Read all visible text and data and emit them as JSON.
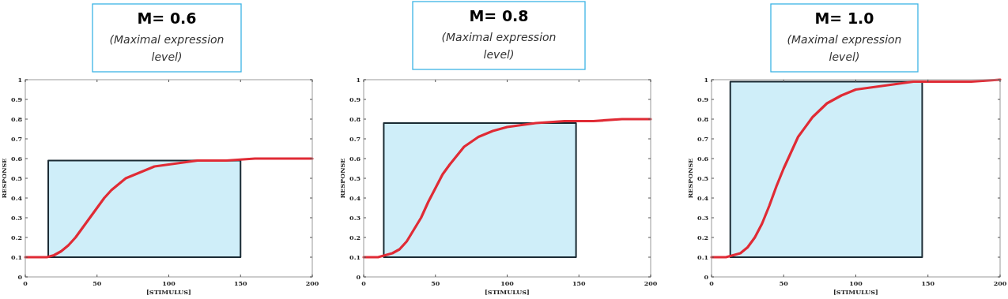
{
  "chart_data": [
    {
      "type": "line",
      "title": "M= 0.6",
      "subtitle": "(Maximal expression level)",
      "xlabel": "[STIMULUS]",
      "ylabel": "RESPONSE",
      "xlim": [
        0,
        200
      ],
      "ylim": [
        0,
        1
      ],
      "xticks": [
        0,
        50,
        100,
        150,
        200
      ],
      "yticks": [
        0,
        0.1,
        0.2,
        0.3,
        0.4,
        0.5,
        0.6,
        0.7,
        0.8,
        0.9,
        1
      ],
      "series": [
        {
          "type": "area",
          "color": "#cfeef9",
          "x": [
            16,
            16,
            150,
            150
          ],
          "values": [
            0.1,
            0.59,
            0.59,
            0.1
          ]
        },
        {
          "color": "#e02b35",
          "x": [
            0,
            10,
            15,
            20,
            25,
            30,
            35,
            40,
            45,
            50,
            55,
            60,
            70,
            80,
            90,
            100,
            110,
            120,
            140,
            160,
            180,
            200
          ],
          "values": [
            0.1,
            0.1,
            0.1,
            0.11,
            0.13,
            0.16,
            0.2,
            0.25,
            0.3,
            0.35,
            0.4,
            0.44,
            0.5,
            0.53,
            0.56,
            0.57,
            0.58,
            0.59,
            0.59,
            0.6,
            0.6,
            0.6
          ]
        }
      ]
    },
    {
      "type": "line",
      "title": "M= 0.8",
      "subtitle": "(Maximal expression level)",
      "xlabel": "[STIMULUS]",
      "ylabel": "RESPONSE",
      "xlim": [
        0,
        200
      ],
      "ylim": [
        0,
        1
      ],
      "xticks": [
        0,
        50,
        100,
        150,
        200
      ],
      "yticks": [
        0,
        0.1,
        0.2,
        0.3,
        0.4,
        0.5,
        0.6,
        0.7,
        0.8,
        0.9,
        1
      ],
      "series": [
        {
          "type": "area",
          "color": "#cfeef9",
          "x": [
            14,
            14,
            148,
            148
          ],
          "values": [
            0.1,
            0.78,
            0.78,
            0.1
          ]
        },
        {
          "color": "#e02b35",
          "x": [
            0,
            10,
            15,
            20,
            25,
            30,
            35,
            40,
            45,
            50,
            55,
            60,
            70,
            80,
            90,
            100,
            110,
            120,
            140,
            160,
            180,
            200
          ],
          "values": [
            0.1,
            0.1,
            0.11,
            0.12,
            0.14,
            0.18,
            0.24,
            0.3,
            0.38,
            0.45,
            0.52,
            0.57,
            0.66,
            0.71,
            0.74,
            0.76,
            0.77,
            0.78,
            0.79,
            0.79,
            0.8,
            0.8
          ]
        }
      ]
    },
    {
      "type": "line",
      "title": "M= 1.0",
      "subtitle": "(Maximal expression level)",
      "xlabel": "[STIMULUS]",
      "ylabel": "RESPONSE",
      "xlim": [
        0,
        200
      ],
      "ylim": [
        0,
        1
      ],
      "xticks": [
        0,
        50,
        100,
        150,
        200
      ],
      "yticks": [
        0,
        0.1,
        0.2,
        0.3,
        0.4,
        0.5,
        0.6,
        0.7,
        0.8,
        0.9,
        1
      ],
      "series": [
        {
          "type": "area",
          "color": "#cfeef9",
          "x": [
            13,
            13,
            146,
            146
          ],
          "values": [
            0.1,
            0.99,
            0.99,
            0.1
          ]
        },
        {
          "color": "#e02b35",
          "x": [
            0,
            10,
            15,
            20,
            25,
            30,
            35,
            40,
            45,
            50,
            55,
            60,
            70,
            80,
            90,
            100,
            110,
            120,
            140,
            160,
            180,
            200
          ],
          "values": [
            0.1,
            0.1,
            0.11,
            0.12,
            0.15,
            0.2,
            0.27,
            0.36,
            0.46,
            0.55,
            0.63,
            0.71,
            0.81,
            0.88,
            0.92,
            0.95,
            0.96,
            0.97,
            0.99,
            0.99,
            0.99,
            1.0
          ]
        }
      ]
    }
  ]
}
